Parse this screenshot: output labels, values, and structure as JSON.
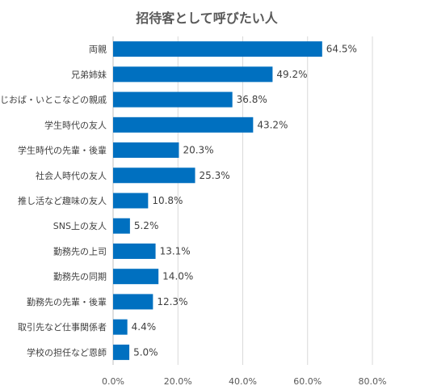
{
  "chart_data": {
    "type": "bar",
    "orientation": "horizontal",
    "title": "招待客として呼びたい人",
    "categories": [
      "両親",
      "兄弟姉妹",
      "おじおば・いとこなどの親戚",
      "学生時代の友人",
      "学生時代の先輩・後輩",
      "社会人時代の友人",
      "推し活など趣味の友人",
      "SNS上の友人",
      "勤務先の上司",
      "勤務先の同期",
      "勤務先の先輩・後輩",
      "取引先など仕事関係者",
      "学校の担任など恩師"
    ],
    "values": [
      64.5,
      49.2,
      36.8,
      43.2,
      20.3,
      25.3,
      10.8,
      5.2,
      13.1,
      14.0,
      12.3,
      4.4,
      5.0
    ],
    "value_labels": [
      "64.5%",
      "49.2%",
      "36.8%",
      "43.2%",
      "20.3%",
      "25.3%",
      "10.8%",
      "5.2%",
      "13.1%",
      "14.0%",
      "12.3%",
      "4.4%",
      "5.0%"
    ],
    "xlim": [
      0,
      80
    ],
    "x_ticks": [
      0,
      20,
      40,
      60,
      80
    ],
    "x_tick_labels": [
      "0.0%",
      "20.0%",
      "40.0%",
      "60.0%",
      "80.0%"
    ],
    "grid": true,
    "legend": "none",
    "bar_color": "#0070c0"
  }
}
